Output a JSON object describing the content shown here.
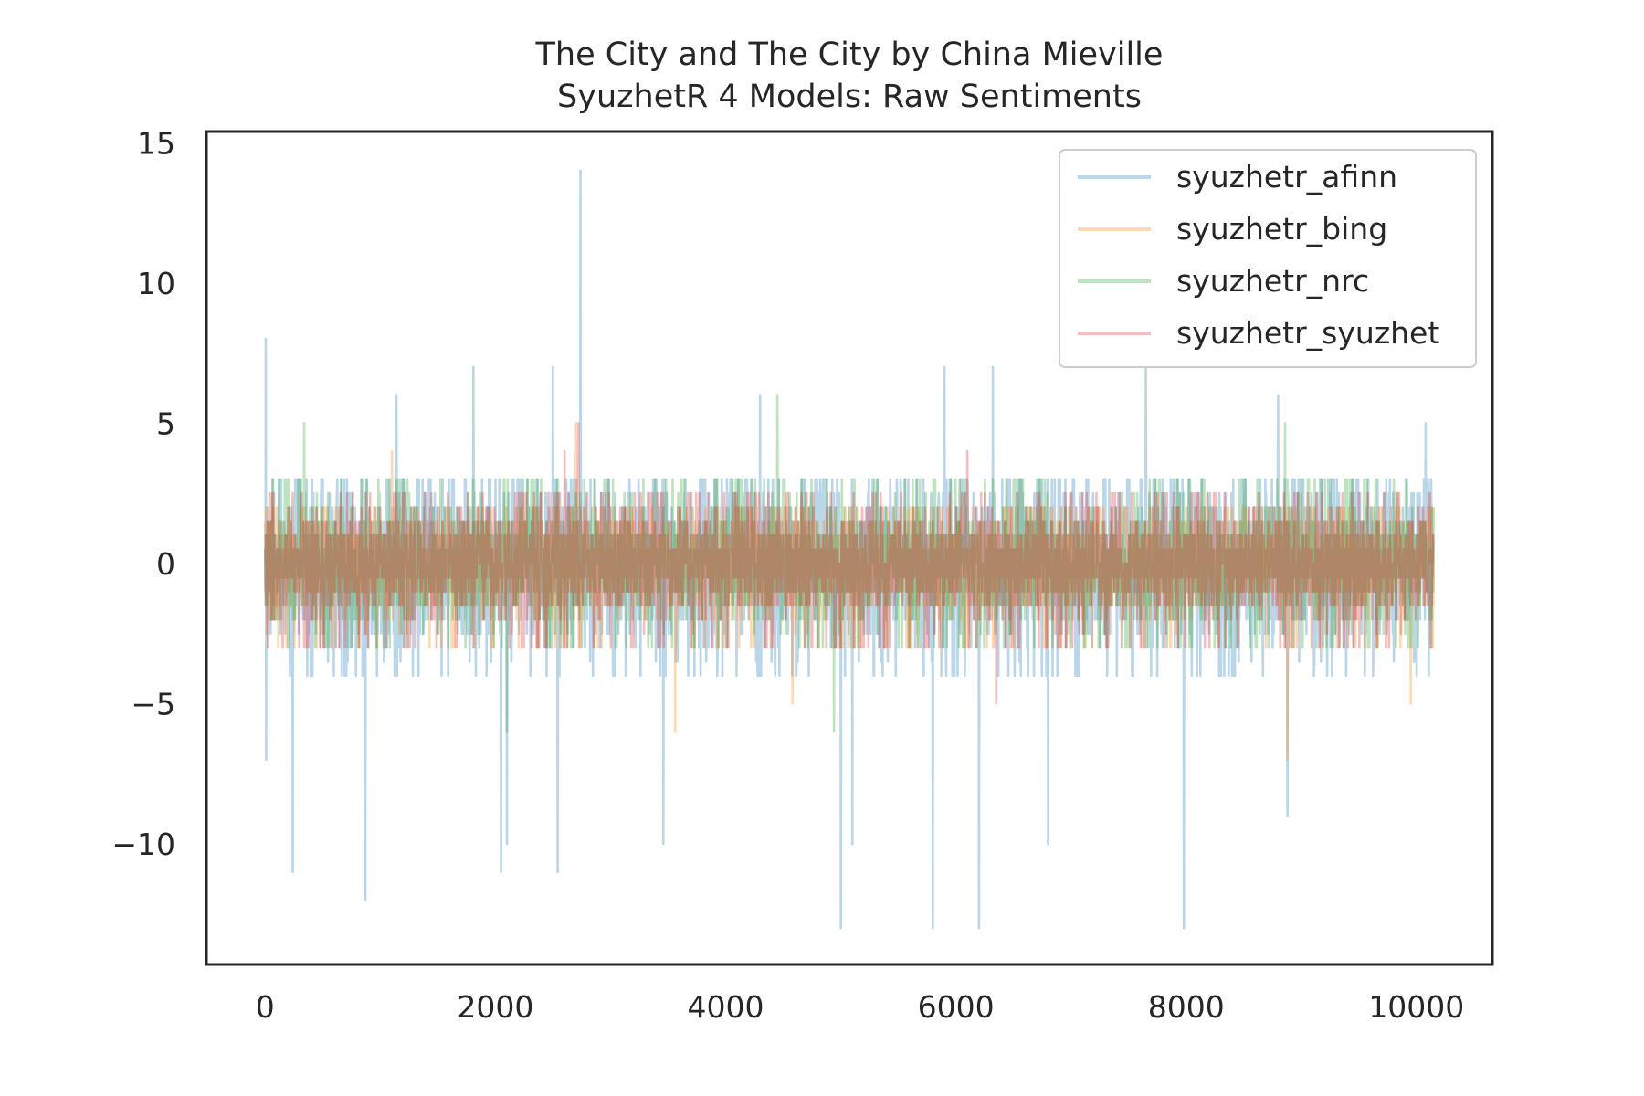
{
  "chart_data": {
    "type": "line",
    "title": "The City and The City by China Mieville",
    "subtitle": "SyuzhetR 4 Models: Raw Sentiments",
    "xlabel": "",
    "ylabel": "",
    "xlim": [
      -510,
      10660
    ],
    "ylim": [
      -14.3,
      15.4
    ],
    "grid": false,
    "legend_position": "top-right",
    "x_ticks": [
      0,
      2000,
      4000,
      6000,
      8000,
      10000
    ],
    "x_tick_labels": [
      "0",
      "2000",
      "4000",
      "6000",
      "8000",
      "10000"
    ],
    "y_ticks": [
      15,
      10,
      5,
      0,
      -5,
      -10
    ],
    "y_tick_labels": [
      "15",
      "10",
      "5",
      "0",
      "−5",
      "−10"
    ],
    "n_points": 10150,
    "series": [
      {
        "name": "syuzhetr_afinn",
        "color": "#1f77b4",
        "opacity": 0.3,
        "noise_scale": 1.5,
        "typical_range": [
          -4,
          3
        ],
        "extremes": [
          {
            "x": 5,
            "value": 8
          },
          {
            "x": 10,
            "value": -7
          },
          {
            "x": 240,
            "value": -11
          },
          {
            "x": 870,
            "value": -12
          },
          {
            "x": 1140,
            "value": 6
          },
          {
            "x": 1810,
            "value": 7
          },
          {
            "x": 2050,
            "value": -11
          },
          {
            "x": 2100,
            "value": -10
          },
          {
            "x": 2500,
            "value": 7
          },
          {
            "x": 2540,
            "value": -11
          },
          {
            "x": 2740,
            "value": 14
          },
          {
            "x": 3460,
            "value": -10
          },
          {
            "x": 4300,
            "value": 6
          },
          {
            "x": 5000,
            "value": -13
          },
          {
            "x": 5100,
            "value": -10
          },
          {
            "x": 5800,
            "value": -13
          },
          {
            "x": 5900,
            "value": 7
          },
          {
            "x": 6200,
            "value": -13
          },
          {
            "x": 6320,
            "value": 7
          },
          {
            "x": 6800,
            "value": -10
          },
          {
            "x": 7650,
            "value": 7
          },
          {
            "x": 7980,
            "value": -13
          },
          {
            "x": 8800,
            "value": 6
          },
          {
            "x": 8880,
            "value": -9
          },
          {
            "x": 10080,
            "value": 5
          }
        ]
      },
      {
        "name": "syuzhetr_bing",
        "color": "#ff7f0e",
        "opacity": 0.3,
        "noise_scale": 0.9,
        "typical_range": [
          -3,
          2
        ],
        "extremes": [
          {
            "x": 1100,
            "value": 4
          },
          {
            "x": 2700,
            "value": 5
          },
          {
            "x": 3560,
            "value": -6
          },
          {
            "x": 4580,
            "value": -5
          },
          {
            "x": 8880,
            "value": -7
          },
          {
            "x": 9950,
            "value": -5
          }
        ]
      },
      {
        "name": "syuzhetr_nrc",
        "color": "#2ca02c",
        "opacity": 0.3,
        "noise_scale": 1.0,
        "typical_range": [
          -3,
          3
        ],
        "extremes": [
          {
            "x": 340,
            "value": 5
          },
          {
            "x": 2100,
            "value": -6
          },
          {
            "x": 4450,
            "value": 6
          },
          {
            "x": 4940,
            "value": -6
          },
          {
            "x": 8860,
            "value": 5
          }
        ]
      },
      {
        "name": "syuzhetr_syuzhet",
        "color": "#d62728",
        "opacity": 0.3,
        "noise_scale": 0.95,
        "typical_range": [
          -3,
          2.5
        ],
        "extremes": [
          {
            "x": 2600,
            "value": 4
          },
          {
            "x": 2720,
            "value": 5
          },
          {
            "x": 6100,
            "value": 4
          },
          {
            "x": 6350,
            "value": -5
          }
        ]
      }
    ]
  }
}
